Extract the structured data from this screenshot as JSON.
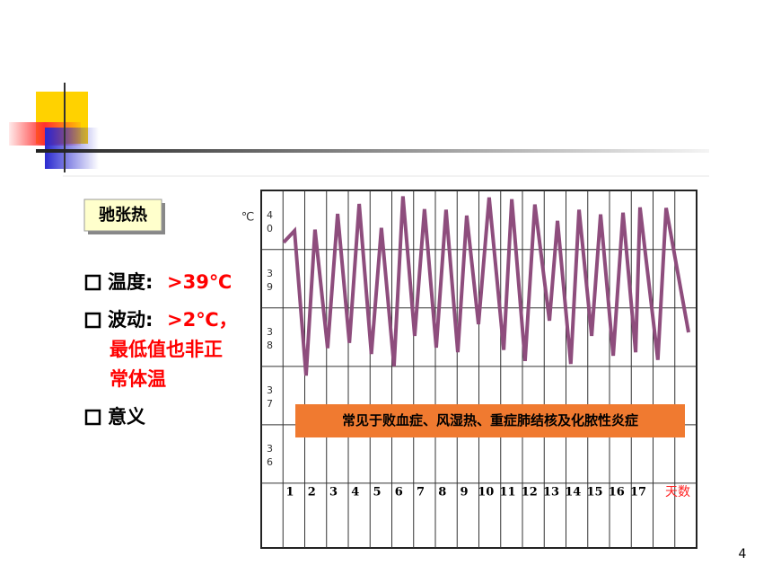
{
  "slide": {
    "page_number": "4",
    "tag": "驰张热",
    "bullets": [
      {
        "label": "温度:",
        "value_lines": [
          ">39℃"
        ]
      },
      {
        "label": "波动:",
        "value_lines": [
          ">2℃，",
          "最低值也非正",
          "常体温"
        ]
      },
      {
        "label": "意义",
        "value_lines": []
      }
    ]
  },
  "chart_data": {
    "type": "line",
    "y_label": "℃",
    "x_label": "天数",
    "annotation": "常见于败血症、风湿热、重症肺结核及化脓性炎症",
    "color": "#8e4d7d",
    "x": [
      0.71,
      1.21,
      1.74,
      2.15,
      2.73,
      3.19,
      3.73,
      4.18,
      4.74,
      5.2,
      5.78,
      6.19,
      6.73,
      7.18,
      7.72,
      8.17,
      8.71,
      9.12,
      9.66,
      10.15,
      10.82,
      11.19,
      11.8,
      12.25,
      12.92,
      13.29,
      13.9,
      14.28,
      14.86,
      15.27,
      15.85,
      16.3,
      16.88,
      17.08,
      17.9,
      18.28,
      19.31
    ],
    "values": [
      39.66,
      39.86,
      37.38,
      39.88,
      37.85,
      40.15,
      37.94,
      40.32,
      37.75,
      39.91,
      37.54,
      40.45,
      38.06,
      40.23,
      37.86,
      40.22,
      37.78,
      40.12,
      38.26,
      40.43,
      37.82,
      40.4,
      37.63,
      40.31,
      38.32,
      40.03,
      37.58,
      40.22,
      38.06,
      40.14,
      37.72,
      40.17,
      37.78,
      40.26,
      37.65,
      40.25,
      38.12
    ],
    "xlim": [
      -0.32,
      19.68
    ],
    "xticks": [
      1,
      2,
      3,
      4,
      5,
      6,
      7,
      8,
      9,
      10,
      11,
      12,
      13,
      14,
      15,
      16,
      17
    ],
    "ylim": [
      34.43,
      40.55
    ],
    "yticks": [
      36,
      37,
      38,
      39,
      40
    ],
    "grid": true
  }
}
